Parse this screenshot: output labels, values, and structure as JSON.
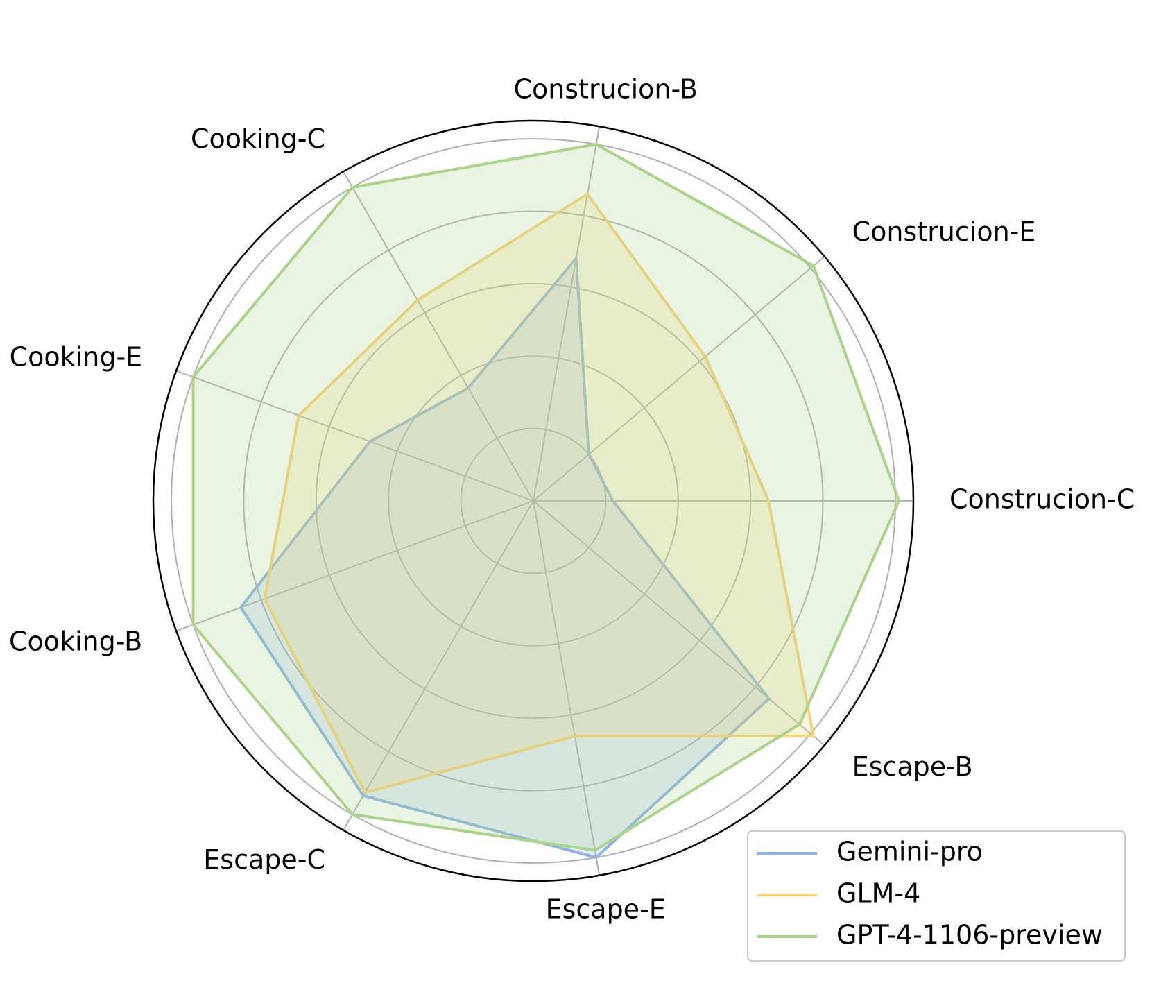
{
  "chart_data": {
    "type": "radar",
    "categories": [
      "Construcion-C",
      "Construcion-E",
      "Construcion-B",
      "Cooking-C",
      "Cooking-E",
      "Cooking-B",
      "Escape-C",
      "Escape-E",
      "Escape-B"
    ],
    "series": [
      {
        "name": "Gemini-pro",
        "color": "#8fb4e3",
        "values": [
          0.22,
          0.2,
          0.68,
          0.36,
          0.48,
          0.86,
          0.94,
          1.0,
          0.85
        ]
      },
      {
        "name": "GLM-4",
        "color": "#f9d27a",
        "values": [
          0.65,
          0.62,
          0.86,
          0.64,
          0.69,
          0.79,
          0.93,
          0.66,
          1.01
        ]
      },
      {
        "name": "GPT-4-1106-preview",
        "color": "#a9d48a",
        "values": [
          1.01,
          1.01,
          1.0,
          1.0,
          1.0,
          1.0,
          1.0,
          0.98,
          0.96
        ]
      }
    ],
    "ylim": [
      0,
      1.05
    ],
    "yticks": [
      0.2,
      0.4,
      0.6,
      0.8,
      1.0
    ],
    "grid": true,
    "legend": "lower right"
  }
}
